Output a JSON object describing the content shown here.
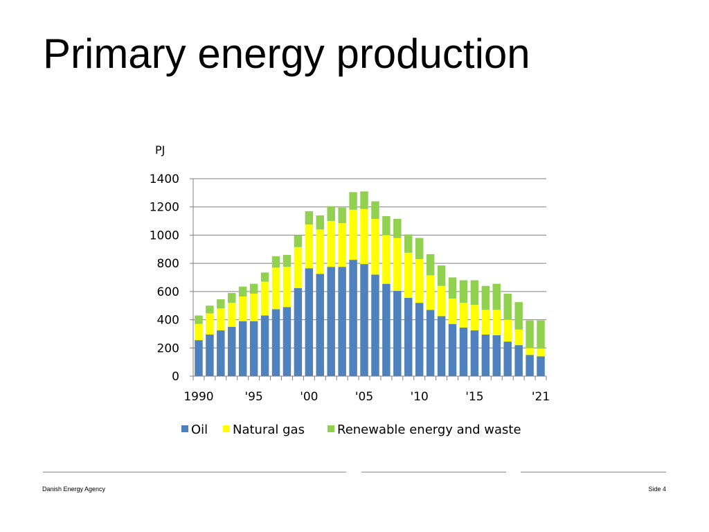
{
  "slide": {
    "title": "Primary energy production",
    "footer_left": "Danish Energy Agency",
    "footer_right": "Side 4"
  },
  "colors": {
    "oil": "#4f81bd",
    "natural_gas": "#ffff00",
    "renewable": "#92d050",
    "gridline": "#7f7f7f",
    "axis": "#7f7f7f",
    "footer_rule": "#8c8c8c"
  },
  "chart_data": {
    "type": "bar",
    "stacked": true,
    "unit_label": "PJ",
    "x_tick_labels": [
      "1990",
      "'95",
      "'00",
      "'05",
      "'10",
      "'15",
      "'21"
    ],
    "categories": [
      "1990",
      "1991",
      "1992",
      "1993",
      "1994",
      "1995",
      "1996",
      "1997",
      "1998",
      "1999",
      "2000",
      "2001",
      "2002",
      "2003",
      "2004",
      "2005",
      "2006",
      "2007",
      "2008",
      "2009",
      "2010",
      "2011",
      "2012",
      "2013",
      "2014",
      "2015",
      "2016",
      "2017",
      "2018",
      "2019",
      "2020",
      "2021"
    ],
    "series": [
      {
        "name": "Oil",
        "color": "#4f81bd",
        "values": [
          255,
          295,
          325,
          350,
          390,
          390,
          430,
          475,
          490,
          625,
          765,
          725,
          775,
          775,
          825,
          795,
          720,
          655,
          605,
          555,
          520,
          470,
          425,
          370,
          345,
          325,
          295,
          290,
          245,
          220,
          150,
          140
        ]
      },
      {
        "name": "Natural gas",
        "color": "#ffff00",
        "values": [
          115,
          150,
          155,
          170,
          175,
          195,
          240,
          295,
          285,
          290,
          310,
          315,
          325,
          310,
          355,
          390,
          395,
          345,
          375,
          320,
          310,
          245,
          215,
          180,
          175,
          180,
          175,
          180,
          155,
          110,
          50,
          55
        ]
      },
      {
        "name": "Renewable energy and waste",
        "color": "#92d050",
        "values": [
          60,
          55,
          65,
          70,
          70,
          70,
          65,
          80,
          85,
          85,
          95,
          100,
          105,
          110,
          125,
          125,
          125,
          135,
          135,
          130,
          150,
          150,
          145,
          150,
          160,
          175,
          170,
          185,
          185,
          195,
          195,
          200
        ]
      }
    ],
    "ylim": [
      0,
      1400
    ],
    "y_ticks": [
      0,
      200,
      400,
      600,
      800,
      1000,
      1200,
      1400
    ],
    "grid": true,
    "legend_position": "bottom"
  }
}
